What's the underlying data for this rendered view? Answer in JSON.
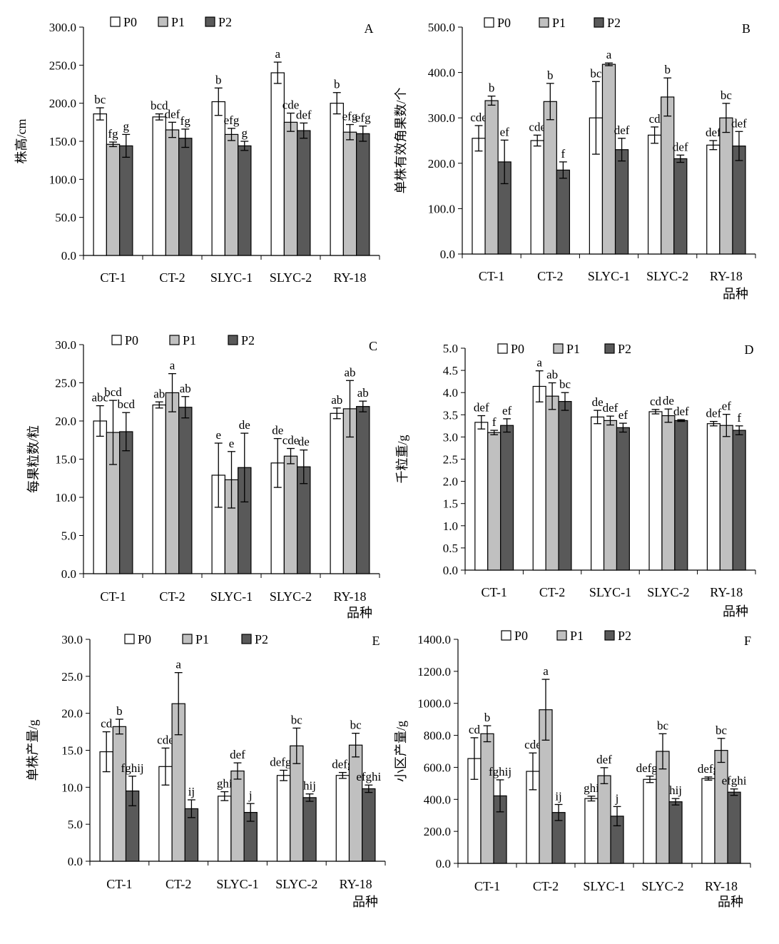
{
  "colors": {
    "P0": "#ffffff",
    "P1": "#c0c0c0",
    "P2": "#595959",
    "stroke": "#000000"
  },
  "chart_data": [
    {
      "id": "A",
      "type": "bar",
      "panel_letter": "A",
      "categories": [
        "CT-1",
        "CT-2",
        "SLYC-1",
        "SLYC-2",
        "RY-18"
      ],
      "ylabel": "株高/cm",
      "xlabel": "",
      "ylim": [
        0,
        300
      ],
      "yticks": [
        0,
        50,
        100,
        150,
        200,
        250,
        300
      ],
      "tick_format": "0.0",
      "legend": [
        "P0",
        "P1",
        "P2"
      ],
      "series": [
        {
          "name": "P0",
          "values": [
            186,
            182,
            202,
            240,
            200
          ],
          "errors": [
            8,
            4,
            18,
            14,
            14
          ],
          "labels": [
            "bc",
            "bcd",
            "b",
            "a",
            "b"
          ]
        },
        {
          "name": "P1",
          "values": [
            146,
            165,
            159,
            175,
            162
          ],
          "errors": [
            3,
            10,
            8,
            12,
            10
          ],
          "labels": [
            "fg",
            "def",
            "efg",
            "cde",
            "efg"
          ]
        },
        {
          "name": "P2",
          "values": [
            144,
            154,
            144,
            164,
            160
          ],
          "errors": [
            15,
            12,
            6,
            10,
            10
          ],
          "labels": [
            "g",
            "fg",
            "g",
            "def",
            "efg"
          ]
        }
      ]
    },
    {
      "id": "B",
      "type": "bar",
      "panel_letter": "B",
      "categories": [
        "CT-1",
        "CT-2",
        "SLYC-1",
        "SLYC-2",
        "RY-18"
      ],
      "ylabel": "单株有效角果数/个",
      "xlabel": "品种",
      "ylim": [
        0,
        500
      ],
      "yticks": [
        0,
        100,
        200,
        300,
        400,
        500
      ],
      "tick_format": "0.0",
      "legend": [
        "P0",
        "P1",
        "P2"
      ],
      "series": [
        {
          "name": "P0",
          "values": [
            255,
            250,
            300,
            262,
            240
          ],
          "errors": [
            28,
            12,
            80,
            18,
            10
          ],
          "labels": [
            "cde",
            "cde",
            "bc",
            "cd",
            "def"
          ]
        },
        {
          "name": "P1",
          "values": [
            338,
            336,
            418,
            346,
            300
          ],
          "errors": [
            10,
            40,
            3,
            42,
            32
          ],
          "labels": [
            "b",
            "b",
            "a",
            "b",
            "bc"
          ]
        },
        {
          "name": "P2",
          "values": [
            203,
            185,
            230,
            210,
            238
          ],
          "errors": [
            48,
            18,
            25,
            8,
            32
          ],
          "labels": [
            "ef",
            "f",
            "def",
            "def",
            "def"
          ]
        }
      ]
    },
    {
      "id": "C",
      "type": "bar",
      "panel_letter": "C",
      "categories": [
        "CT-1",
        "CT-2",
        "SLYC-1",
        "SLYC-2",
        "RY-18"
      ],
      "ylabel": "每果粒数/粒",
      "xlabel": "品种",
      "ylim": [
        0,
        30
      ],
      "yticks": [
        0,
        5,
        10,
        15,
        20,
        25,
        30
      ],
      "tick_format": "0.0",
      "legend": [
        "P0",
        "P1",
        "P2"
      ],
      "series": [
        {
          "name": "P0",
          "values": [
            20.0,
            22.1,
            12.9,
            14.5,
            21.0
          ],
          "errors": [
            2.0,
            0.4,
            4.2,
            3.2,
            0.7
          ],
          "labels": [
            "abc",
            "ab",
            "e",
            "de",
            "ab"
          ]
        },
        {
          "name": "P1",
          "values": [
            18.5,
            23.7,
            12.3,
            15.4,
            21.6
          ],
          "errors": [
            4.2,
            2.5,
            3.7,
            1.0,
            3.7
          ],
          "labels": [
            "bcd",
            "a",
            "e",
            "cde",
            "ab"
          ]
        },
        {
          "name": "P2",
          "values": [
            18.6,
            21.8,
            13.9,
            14.0,
            21.9
          ],
          "errors": [
            2.5,
            1.4,
            4.5,
            2.2,
            0.7
          ],
          "labels": [
            "bcd",
            "ab",
            "de",
            "de",
            "ab"
          ]
        }
      ]
    },
    {
      "id": "D",
      "type": "bar",
      "panel_letter": "D",
      "categories": [
        "CT-1",
        "CT-2",
        "SLYC-1",
        "SLYC-2",
        "RY-18"
      ],
      "ylabel": "千粒重/g",
      "xlabel": "品种",
      "ylim": [
        0,
        5
      ],
      "yticks": [
        0,
        0.5,
        1,
        1.5,
        2,
        2.5,
        3,
        3.5,
        4,
        4.5,
        5
      ],
      "tick_format": "0.0",
      "legend": [
        "P0",
        "P1",
        "P2"
      ],
      "series": [
        {
          "name": "P0",
          "values": [
            3.33,
            4.14,
            3.45,
            3.57,
            3.3
          ],
          "errors": [
            0.15,
            0.35,
            0.15,
            0.05,
            0.05
          ],
          "labels": [
            "def",
            "a",
            "de",
            "cd",
            "def"
          ]
        },
        {
          "name": "P1",
          "values": [
            3.1,
            3.92,
            3.37,
            3.48,
            3.26
          ],
          "errors": [
            0.05,
            0.3,
            0.1,
            0.15,
            0.25
          ],
          "labels": [
            "f",
            "ab",
            "def",
            "de",
            "ef"
          ]
        },
        {
          "name": "P2",
          "values": [
            3.26,
            3.8,
            3.21,
            3.37,
            3.15
          ],
          "errors": [
            0.15,
            0.2,
            0.1,
            0.02,
            0.1
          ],
          "labels": [
            "ef",
            "bc",
            "ef",
            "def",
            "f"
          ]
        }
      ]
    },
    {
      "id": "E",
      "type": "bar",
      "panel_letter": "E",
      "categories": [
        "CT-1",
        "CT-2",
        "SLYC-1",
        "SLYC-2",
        "RY-18"
      ],
      "ylabel": "单株产量/g",
      "xlabel": "品种",
      "ylim": [
        0,
        30
      ],
      "yticks": [
        0,
        5,
        10,
        15,
        20,
        25,
        30
      ],
      "tick_format": "0.0",
      "legend": [
        "P0",
        "P1",
        "P2"
      ],
      "series": [
        {
          "name": "P0",
          "values": [
            14.8,
            12.8,
            8.8,
            11.6,
            11.6
          ],
          "errors": [
            2.7,
            2.5,
            0.6,
            0.7,
            0.4
          ],
          "labels": [
            "cd",
            "cde",
            "ghi",
            "defgh",
            "defg"
          ]
        },
        {
          "name": "P1",
          "values": [
            18.2,
            21.3,
            12.2,
            15.6,
            15.7
          ],
          "errors": [
            1.0,
            4.2,
            1.1,
            2.4,
            1.6
          ],
          "labels": [
            "b",
            "a",
            "def",
            "bc",
            "bc"
          ]
        },
        {
          "name": "P2",
          "values": [
            9.5,
            7.1,
            6.6,
            8.6,
            9.8
          ],
          "errors": [
            2.0,
            1.2,
            1.2,
            0.5,
            0.5
          ],
          "labels": [
            "fghij",
            "ij",
            "j",
            "hij",
            "efghi"
          ]
        }
      ]
    },
    {
      "id": "F",
      "type": "bar",
      "panel_letter": "F",
      "categories": [
        "CT-1",
        "CT-2",
        "SLYC-1",
        "SLYC-2",
        "RY-18"
      ],
      "ylabel": "小区产量/g",
      "xlabel": "品种",
      "ylim": [
        0,
        1400
      ],
      "yticks": [
        0,
        200,
        400,
        600,
        800,
        1000,
        1200,
        1400
      ],
      "tick_format": "0.0",
      "legend": [
        "P0",
        "P1",
        "P2"
      ],
      "series": [
        {
          "name": "P0",
          "values": [
            655,
            575,
            405,
            525,
            530
          ],
          "errors": [
            130,
            115,
            15,
            20,
            10
          ],
          "labels": [
            "cd",
            "cde",
            "ghi",
            "defgh",
            "defg"
          ]
        },
        {
          "name": "P1",
          "values": [
            810,
            960,
            548,
            700,
            706
          ],
          "errors": [
            50,
            190,
            50,
            110,
            75
          ],
          "labels": [
            "b",
            "a",
            "def",
            "bc",
            "bc"
          ]
        },
        {
          "name": "P2",
          "values": [
            422,
            318,
            295,
            385,
            445
          ],
          "errors": [
            100,
            50,
            60,
            20,
            20
          ],
          "labels": [
            "fghij",
            "ij",
            "j",
            "hij",
            "efghi"
          ]
        }
      ]
    }
  ]
}
